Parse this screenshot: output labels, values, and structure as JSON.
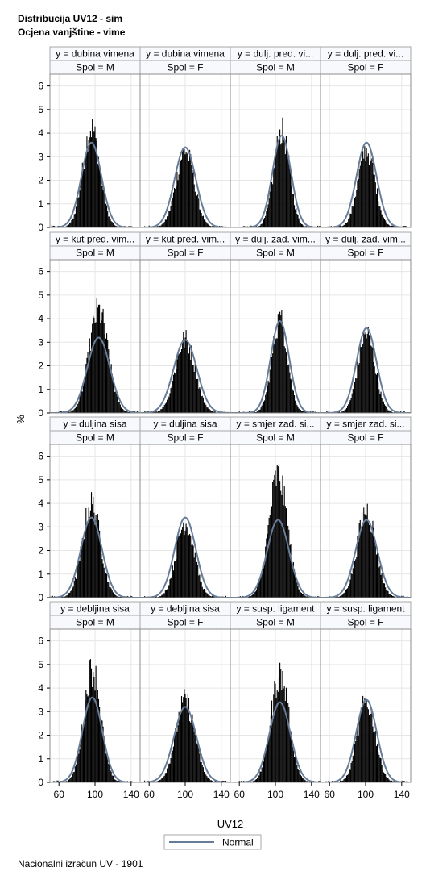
{
  "title_line1": "Distribucija UV12 - sim",
  "title_line2": "Ocjena vanjštine - vime",
  "footnote": "Nacionalni izračun UV - 1901",
  "colors": {
    "bar": "#000000",
    "curve": "#667c99",
    "grid": "#e6e6e6",
    "header_bg": "#f7f9fc",
    "frame": "#8c8c8c"
  },
  "chart_data": {
    "type": "histogram-panel",
    "xlabel": "UV12",
    "ylabel": "%",
    "xlim": [
      50,
      150
    ],
    "ylim": [
      0,
      6.5
    ],
    "xticks": [
      60,
      100,
      140
    ],
    "yticks": [
      0,
      1,
      2,
      3,
      4,
      5,
      6
    ],
    "grid": true,
    "legend": {
      "position": "bottom-center",
      "entries": [
        "Normal"
      ]
    },
    "panels": [
      {
        "y_label": "y = dubina vimena",
        "spol_label": "Spol = M",
        "normal_mean": 96,
        "normal_peak": 3.6,
        "hist_peak": 4.9
      },
      {
        "y_label": "y = dubina vimena",
        "spol_label": "Spol = F",
        "normal_mean": 100,
        "normal_peak": 3.4,
        "hist_peak": 3.8
      },
      {
        "y_label": "y = dulj. pred. vi...",
        "spol_label": "Spol = M",
        "normal_mean": 107,
        "normal_peak": 3.9,
        "hist_peak": 4.7
      },
      {
        "y_label": "y = dulj. pred. vi...",
        "spol_label": "Spol = F",
        "normal_mean": 101,
        "normal_peak": 3.6,
        "hist_peak": 3.8
      },
      {
        "y_label": "y = kut pred. vim...",
        "spol_label": "Spol = M",
        "normal_mean": 104,
        "normal_peak": 3.2,
        "hist_peak": 5.0
      },
      {
        "y_label": "y = kut pred. vim...",
        "spol_label": "Spol = F",
        "normal_mean": 100,
        "normal_peak": 3.1,
        "hist_peak": 3.6
      },
      {
        "y_label": "y = dulj. zad. vim...",
        "spol_label": "Spol = M",
        "normal_mean": 105,
        "normal_peak": 3.9,
        "hist_peak": 4.6
      },
      {
        "y_label": "y = dulj. zad. vim...",
        "spol_label": "Spol = F",
        "normal_mean": 101,
        "normal_peak": 3.6,
        "hist_peak": 3.9
      },
      {
        "y_label": "y = duljina sisa",
        "spol_label": "Spol = M",
        "normal_mean": 96,
        "normal_peak": 3.4,
        "hist_peak": 4.6
      },
      {
        "y_label": "y = duljina sisa",
        "spol_label": "Spol = F",
        "normal_mean": 100,
        "normal_peak": 3.4,
        "hist_peak": 3.7
      },
      {
        "y_label": "y = smjer zad. si...",
        "spol_label": "Spol = M",
        "normal_mean": 103,
        "normal_peak": 3.3,
        "hist_peak": 6.0
      },
      {
        "y_label": "y = smjer zad. si...",
        "spol_label": "Spol = F",
        "normal_mean": 101,
        "normal_peak": 3.3,
        "hist_peak": 4.3
      },
      {
        "y_label": "y = debljina sisa",
        "spol_label": "Spol = M",
        "normal_mean": 97,
        "normal_peak": 3.6,
        "hist_peak": 5.6
      },
      {
        "y_label": "y = debljina sisa",
        "spol_label": "Spol = F",
        "normal_mean": 100,
        "normal_peak": 3.2,
        "hist_peak": 4.0
      },
      {
        "y_label": "y = susp. ligament",
        "spol_label": "Spol = M",
        "normal_mean": 105,
        "normal_peak": 3.4,
        "hist_peak": 5.3
      },
      {
        "y_label": "y = susp. ligament",
        "spol_label": "Spol = F",
        "normal_mean": 101,
        "normal_peak": 3.5,
        "hist_peak": 4.0
      }
    ]
  }
}
